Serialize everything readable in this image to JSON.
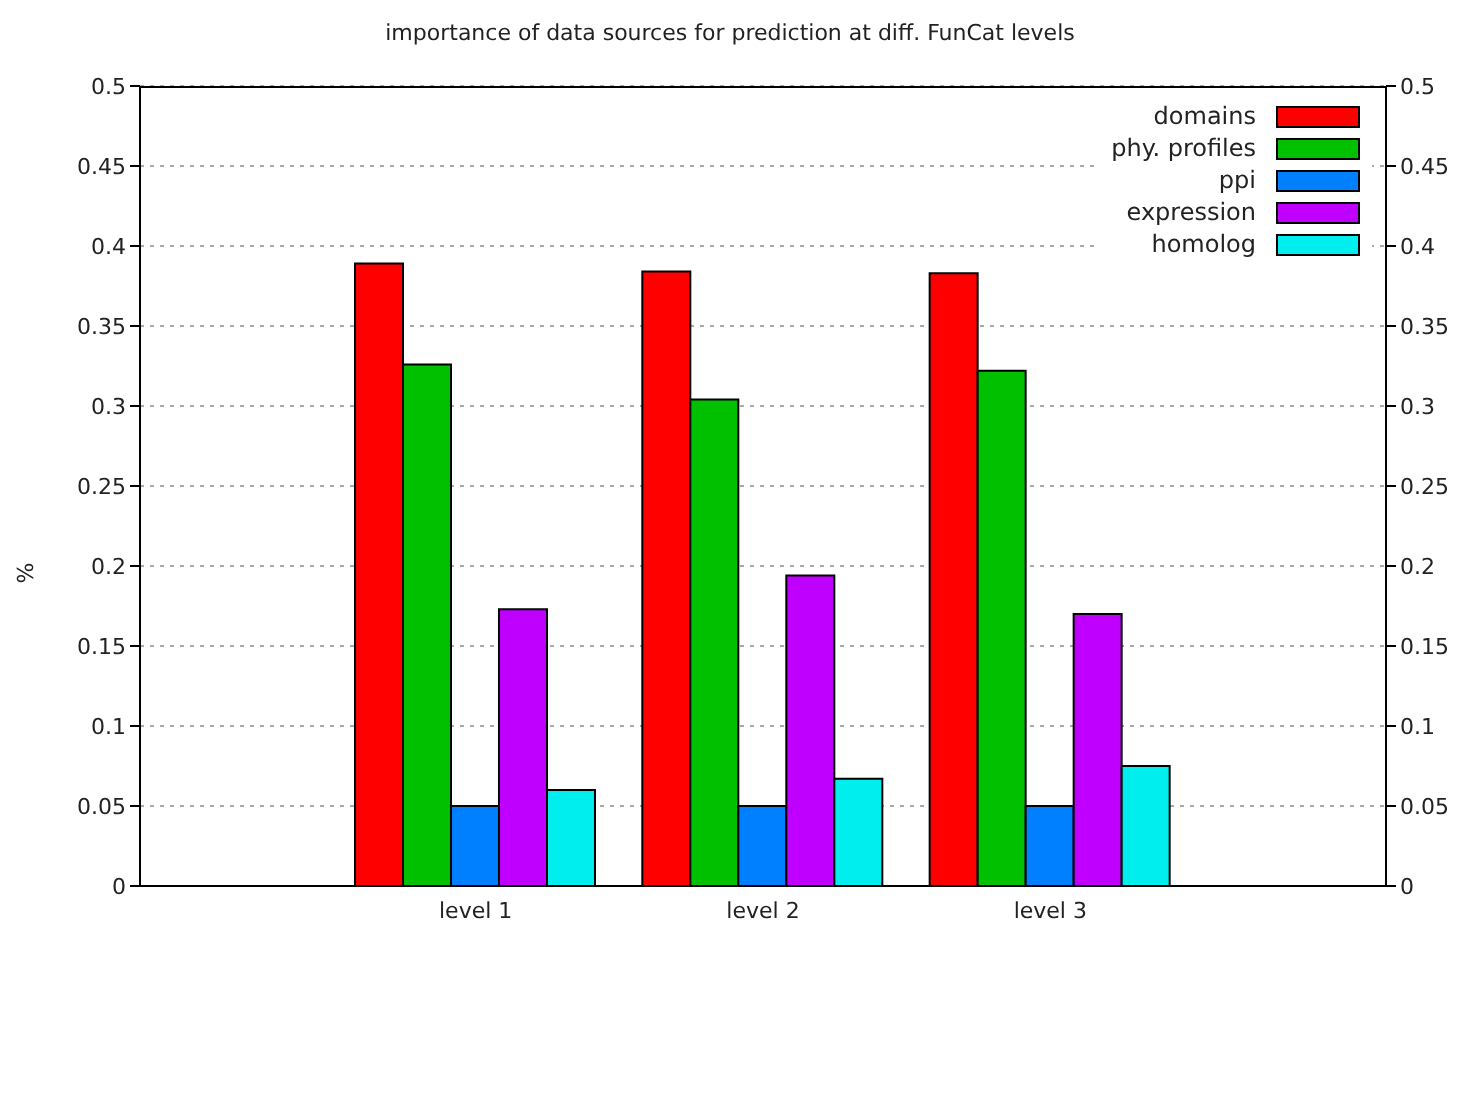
{
  "chart_data": {
    "type": "bar",
    "title": "importance of data sources for prediction at diff. FunCat levels",
    "ylabel": "%",
    "categories": [
      "level 1",
      "level 2",
      "level 3"
    ],
    "series": [
      {
        "name": "domains",
        "color": "#ff0000",
        "values": [
          0.389,
          0.384,
          0.383
        ]
      },
      {
        "name": "phy. profiles",
        "color": "#00c000",
        "values": [
          0.326,
          0.304,
          0.322
        ]
      },
      {
        "name": "ppi",
        "color": "#0080ff",
        "values": [
          0.05,
          0.05,
          0.05
        ]
      },
      {
        "name": "expression",
        "color": "#c000ff",
        "values": [
          0.173,
          0.194,
          0.17
        ]
      },
      {
        "name": "homolog",
        "color": "#00eeee",
        "values": [
          0.06,
          0.067,
          0.075
        ]
      }
    ],
    "ylim": [
      0,
      0.5
    ],
    "yticks": [
      0,
      0.05,
      0.1,
      0.15,
      0.2,
      0.25,
      0.3,
      0.35,
      0.4,
      0.45,
      0.5
    ],
    "y2lim": [
      0,
      0.5
    ],
    "y2ticks": [
      0,
      0.05,
      0.1,
      0.15,
      0.2,
      0.25,
      0.3,
      0.35,
      0.4,
      0.45,
      0.5
    ],
    "grid": "y",
    "legend": "top right"
  }
}
